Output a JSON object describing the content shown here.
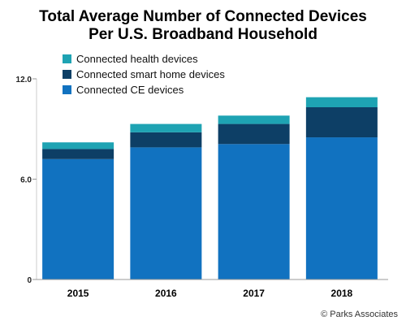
{
  "chart_data": {
    "type": "bar",
    "stacked": true,
    "title": [
      "Total Average Number of Connected Devices",
      "Per U.S. Broadband Household"
    ],
    "categories": [
      "2015",
      "2016",
      "2017",
      "2018"
    ],
    "series": [
      {
        "name": "Connected CE devices",
        "values": [
          7.2,
          7.9,
          8.1,
          8.5
        ],
        "color": "#1172c0"
      },
      {
        "name": "Connected smart home devices",
        "values": [
          0.6,
          0.9,
          1.2,
          1.8
        ],
        "color": "#0d3f66"
      },
      {
        "name": "Connected health devices",
        "values": [
          0.4,
          0.5,
          0.5,
          0.6
        ],
        "color": "#1ea3b3"
      }
    ],
    "legend_order": [
      2,
      1,
      0
    ],
    "legend_position": "top-left",
    "yticks": [
      "12.0",
      "6.0",
      "0"
    ],
    "ylim": [
      0,
      12
    ],
    "grid": false,
    "credit": "© Parks Associates"
  }
}
